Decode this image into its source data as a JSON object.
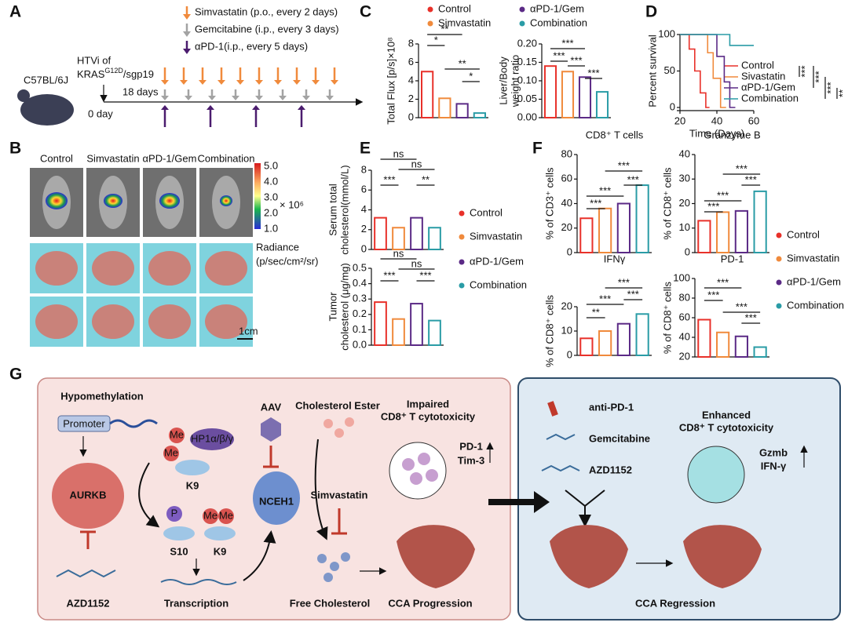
{
  "panel_labels": [
    "A",
    "B",
    "C",
    "D",
    "E",
    "F",
    "G"
  ],
  "panel_a": {
    "mouse": "C57BL/6J",
    "htvi": "HTVi of",
    "kras": "KRAS",
    "kras_sup": "G12D",
    "sgp": "/sgp19",
    "day0": "0 day",
    "day18": "18 days",
    "treatments": [
      {
        "text": "Simvastatin (p.o., every 2 days)",
        "color": "#f08a3c"
      },
      {
        "text": "Gemcitabine (i.p., every 3 days)",
        "color": "#a3a3a3"
      },
      {
        "text": "αPD-1(i.p., every 5 days)",
        "color": "#4b1c6e"
      }
    ]
  },
  "panel_b": {
    "groups": [
      "Control",
      "Simvastatin",
      "αPD-1/Gem",
      "Combination"
    ],
    "colorbar_ticks": [
      "5.0",
      "4.0",
      "3.0",
      "2.0",
      "1.0"
    ],
    "colorbar_unit": "× 10⁶",
    "radiance": "Radiance",
    "radiance_unit": "(p/sec/cm²/sr)",
    "scale": "1cm"
  },
  "legends": {
    "C": {
      "names": [
        "Control",
        "Simvastatin",
        "αPD-1/Gem",
        "Combination"
      ],
      "colors": [
        "#e8312a",
        "#f08a3c",
        "#5b2a86",
        "#2a9ca6"
      ]
    },
    "E": {
      "names": [
        "Control",
        "Simvastatin",
        "αPD-1/Gem",
        "Combination"
      ],
      "colors": [
        "#e8312a",
        "#f08a3c",
        "#5b2a86",
        "#2a9ca6"
      ]
    },
    "F": {
      "names": [
        "Control",
        "Simvastatin",
        "αPD-1/Gem",
        "Combination"
      ],
      "colors": [
        "#e8312a",
        "#f08a3c",
        "#5b2a86",
        "#2a9ca6"
      ]
    }
  },
  "chart_data": [
    {
      "type": "bar",
      "y_label": [
        "Total Flux [p/s]×10⁸"
      ],
      "values": [
        5,
        2.1,
        1.5,
        0.5
      ],
      "colors": [
        "#e8312a",
        "#f08a3c",
        "#5b2a86",
        "#2a9ca6"
      ],
      "ylim": [
        0,
        8
      ],
      "yticks": [
        0,
        2,
        4,
        6,
        8
      ],
      "annotations": [
        "**",
        "*",
        "**",
        "*"
      ]
    },
    {
      "type": "bar",
      "y_label": [
        "Liver/Body",
        "weight ratio"
      ],
      "values": [
        0.14,
        0.125,
        0.11,
        0.07
      ],
      "colors": [
        "#e8312a",
        "#f08a3c",
        "#5b2a86",
        "#2a9ca6"
      ],
      "ylim": [
        0,
        0.2
      ],
      "yticks": [
        {
          "value": 0,
          "label": "0.00"
        },
        {
          "value": 0.05,
          "label": "0.05"
        },
        {
          "value": 0.1,
          "label": "0.10"
        },
        {
          "value": 0.15,
          "label": "0.15"
        },
        {
          "value": 0.2,
          "label": "0.20"
        }
      ],
      "annotations": [
        "***",
        "***",
        "***",
        "***"
      ]
    },
    {
      "type": "line",
      "y_label": "Percent survival",
      "x_label": "Time (Days)",
      "xlim": [
        20,
        60
      ],
      "ylim": [
        0,
        100
      ],
      "xticks": [
        20,
        40,
        60
      ],
      "yticks": [
        0,
        50,
        100
      ],
      "series": [
        {
          "name": "Control",
          "color": "#e8312a",
          "x": [
            20,
            25,
            25,
            28,
            28,
            31,
            31,
            34,
            34,
            36
          ],
          "y": [
            100,
            100,
            80,
            80,
            50,
            50,
            20,
            20,
            0,
            0
          ]
        },
        {
          "name": "Sivastatin",
          "color": "#f08a3c",
          "x": [
            20,
            35,
            35,
            38,
            38,
            42,
            42,
            45
          ],
          "y": [
            100,
            100,
            75,
            75,
            40,
            40,
            0,
            0
          ]
        },
        {
          "name": "αPD-1/Gem",
          "color": "#5b2a86",
          "x": [
            20,
            40,
            40,
            44,
            44,
            47,
            47,
            50
          ],
          "y": [
            100,
            100,
            70,
            70,
            35,
            35,
            0,
            0
          ]
        },
        {
          "name": "Combination",
          "color": "#2a9ca6",
          "x": [
            20,
            47,
            47,
            60
          ],
          "y": [
            100,
            100,
            85,
            85
          ]
        }
      ],
      "annotations": [
        "***",
        "***",
        "***",
        "**"
      ]
    },
    {
      "type": "bar",
      "y_label": [
        "Serum total",
        "cholesterol(mmol/L)"
      ],
      "values": [
        3.2,
        2.2,
        3.2,
        2.2
      ],
      "colors": [
        "#e8312a",
        "#f08a3c",
        "#5b2a86",
        "#2a9ca6"
      ],
      "ylim": [
        0,
        8
      ],
      "yticks": [
        0,
        2,
        4,
        6,
        8
      ],
      "annotations": [
        "ns",
        "***",
        "ns",
        "**"
      ]
    },
    {
      "type": "bar",
      "y_label": [
        "Tumor",
        "cholesterol (μg/mg)"
      ],
      "values": [
        0.28,
        0.17,
        0.27,
        0.16
      ],
      "colors": [
        "#e8312a",
        "#f08a3c",
        "#5b2a86",
        "#2a9ca6"
      ],
      "ylim": [
        0,
        0.5
      ],
      "yticks": [
        {
          "value": 0,
          "label": "0.0"
        },
        {
          "value": 0.1,
          "label": "0.1"
        },
        {
          "value": 0.2,
          "label": "0.2"
        },
        {
          "value": 0.3,
          "label": "0.3"
        },
        {
          "value": 0.4,
          "label": "0.4"
        },
        {
          "value": 0.5,
          "label": "0.5"
        }
      ],
      "annotations": [
        "ns",
        "***",
        "ns",
        "***"
      ]
    },
    {
      "type": "bar",
      "title": "CD8⁺ T cells",
      "y_label": [
        "% of CD3⁺ cells"
      ],
      "values": [
        28,
        36,
        40,
        55
      ],
      "colors": [
        "#e8312a",
        "#f08a3c",
        "#5b2a86",
        "#2a9ca6"
      ],
      "ylim": [
        0,
        80
      ],
      "yticks": [
        0,
        20,
        40,
        60,
        80
      ],
      "annotations": [
        "***",
        "***",
        "***",
        "***"
      ]
    },
    {
      "type": "bar",
      "title": "Granzyme B",
      "y_label": [
        "% of CD8⁺ cells"
      ],
      "values": [
        13,
        16.5,
        17,
        25
      ],
      "colors": [
        "#e8312a",
        "#f08a3c",
        "#5b2a86",
        "#2a9ca6"
      ],
      "ylim": [
        0,
        40
      ],
      "yticks": [
        0,
        10,
        20,
        30,
        40
      ],
      "annotations": [
        "***",
        "***",
        "***",
        "***"
      ]
    },
    {
      "type": "bar",
      "title": "IFNγ",
      "y_label": [
        "% of CD8⁺ cells"
      ],
      "values": [
        7,
        10,
        13,
        17
      ],
      "colors": [
        "#e8312a",
        "#f08a3c",
        "#5b2a86",
        "#2a9ca6"
      ],
      "ylim": [
        0,
        20
      ],
      "yticks": [
        0,
        10,
        20
      ],
      "annotations": [
        "***",
        "***",
        "***",
        "**"
      ]
    },
    {
      "type": "bar",
      "title": "PD-1",
      "y_label": [
        "% of CD8⁺ cells"
      ],
      "values": [
        58,
        45,
        41,
        30
      ],
      "colors": [
        "#e8312a",
        "#f08a3c",
        "#5b2a86",
        "#2a9ca6"
      ],
      "ylim": [
        20,
        100
      ],
      "yticks": [
        20,
        40,
        60,
        80,
        100
      ],
      "annotations": [
        "***",
        "***",
        "***",
        "***"
      ]
    }
  ],
  "panel_g": {
    "hypomethylation": "Hypomethylation",
    "promoter": "Promoter",
    "aurkb": "AURKB",
    "azd1152_left": "AZD1152",
    "me": "Me",
    "hp1": "HP1α/β/γ",
    "k9": "K9",
    "p": "P",
    "s10": "S10",
    "transcription": "Transcription",
    "aav": "AAV",
    "nceh1": "NCEH1",
    "cholesterol_ester": "Cholesterol Ester",
    "free_cholesterol": "Free Cholesterol",
    "simvastatin": "Simvastatin",
    "impaired": [
      "Impaired",
      "CD8⁺ T cytotoxicity"
    ],
    "pd1": "PD-1",
    "tim3": "Tim-3",
    "cca_progression": "CCA Progression",
    "anti_pd1": "anti-PD-1",
    "gemcitabine": "Gemcitabine",
    "azd1152_right": "AZD1152",
    "enhanced": [
      "Enhanced",
      "CD8⁺ T cytotoxicity"
    ],
    "gzmb": "Gzmb",
    "ifng": "IFN-γ",
    "cca_regression": "CCA Regression"
  }
}
